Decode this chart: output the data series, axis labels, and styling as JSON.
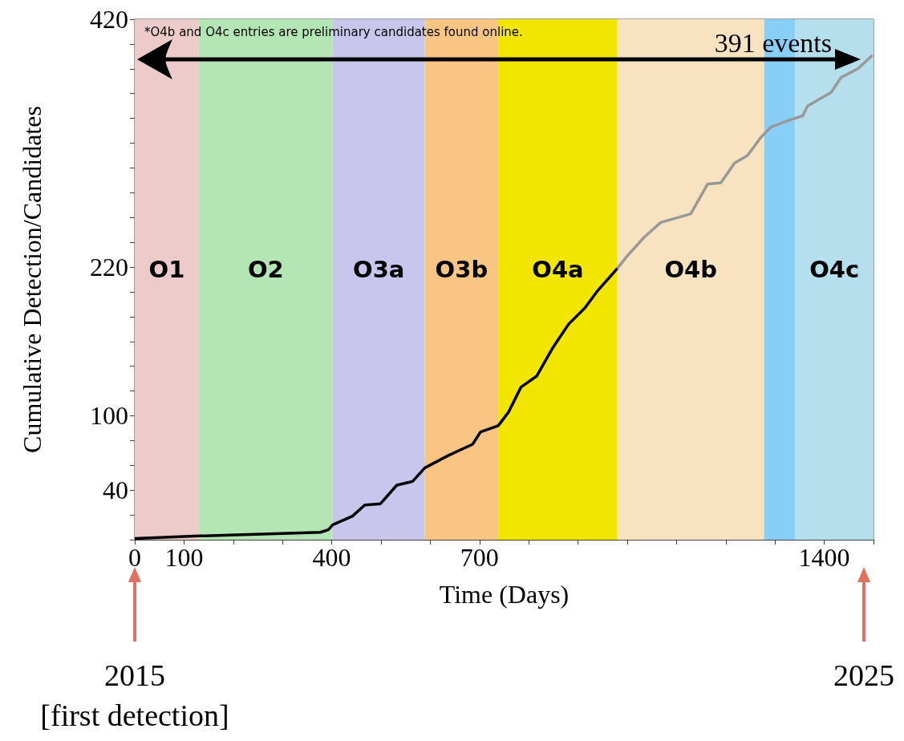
{
  "chart_data": {
    "type": "line",
    "xlabel": "Time (Days)",
    "ylabel": "Cumulative Detection/Candidates",
    "xlim": [
      0,
      1500
    ],
    "ylim": [
      0,
      420
    ],
    "xticks": [
      0,
      100,
      {
        "value": 200,
        "label": null
      },
      {
        "value": 300,
        "label": null
      },
      400,
      {
        "value": 500,
        "label": null
      },
      {
        "value": 600,
        "label": null
      },
      700,
      {
        "value": 800,
        "label": null
      },
      {
        "value": 900,
        "label": null
      },
      {
        "value": 1000,
        "label": null
      },
      {
        "value": 1100,
        "label": null
      },
      {
        "value": 1200,
        "label": null
      },
      {
        "value": 1300,
        "label": null
      },
      1400,
      {
        "value": 1500,
        "label": null
      }
    ],
    "yticks": [
      {
        "value": 0,
        "label": null
      },
      {
        "value": 20,
        "label": null
      },
      40,
      {
        "value": 60,
        "label": null
      },
      {
        "value": 80,
        "label": null
      },
      100,
      {
        "value": 120,
        "label": null
      },
      {
        "value": 140,
        "label": null
      },
      {
        "value": 160,
        "label": null
      },
      {
        "value": 180,
        "label": null
      },
      {
        "value": 200,
        "label": null
      },
      220,
      {
        "value": 240,
        "label": null
      },
      {
        "value": 260,
        "label": null
      },
      {
        "value": 280,
        "label": null
      },
      {
        "value": 300,
        "label": null
      },
      {
        "value": 320,
        "label": null
      },
      {
        "value": 340,
        "label": null
      },
      {
        "value": 360,
        "label": null
      },
      {
        "value": 380,
        "label": null
      },
      {
        "value": 400,
        "label": null
      },
      420
    ],
    "marker": "none",
    "line_style": "solid",
    "series": [
      {
        "color": "#000000",
        "x": [
          0,
          130,
          377,
          393,
          402,
          442,
          467,
          499,
          532,
          564,
          589,
          637,
          686,
          702,
          738,
          759,
          784,
          816,
          849,
          881,
          914,
          938,
          980
        ],
        "values": [
          1,
          3,
          6,
          8,
          12,
          19,
          28,
          29,
          44,
          47,
          58,
          68,
          77,
          87,
          92,
          103,
          123,
          132,
          155,
          174,
          187,
          200,
          219
        ]
      },
      {
        "color": "#999999",
        "x": [
          980,
          1000,
          1034,
          1068,
          1129,
          1163,
          1190,
          1218,
          1244,
          1272,
          1292,
          1332,
          1356,
          1366,
          1414,
          1434,
          1468,
          1498
        ],
        "values": [
          219,
          229,
          244,
          256,
          263,
          287,
          288,
          304,
          310,
          325,
          333,
          339,
          342,
          350,
          361,
          373,
          380,
          391
        ]
      }
    ],
    "bands": [
      {
        "axis": "x",
        "from": 0,
        "to": 130,
        "label": "O1",
        "color": "#eecbcb"
      },
      {
        "axis": "x",
        "from": 130,
        "to": 402,
        "label": "O2",
        "color": "#b4e5b4"
      },
      {
        "axis": "x",
        "from": 402,
        "to": 589,
        "label": "O3a",
        "color": "#c8c6ec"
      },
      {
        "axis": "x",
        "from": 589,
        "to": 738,
        "label": "O3b",
        "color": "#f8c583"
      },
      {
        "axis": "x",
        "from": 738,
        "to": 980,
        "label": "O4a",
        "color": "#f2e600"
      },
      {
        "axis": "x",
        "from": 980,
        "to": 1278,
        "label": "O4b",
        "color": "#f7e3bf"
      },
      {
        "axis": "x",
        "from": 1278,
        "to": 1341,
        "label": null,
        "color": "#88cff8"
      },
      {
        "axis": "x",
        "from": 1341,
        "to": 1500,
        "label": "O4c",
        "color": "#b5dfec"
      }
    ],
    "annotations": [
      "*O4b and O4c entries are preliminary candidates found online.",
      "391 events",
      "2015\n[first detection]",
      "2025"
    ]
  }
}
